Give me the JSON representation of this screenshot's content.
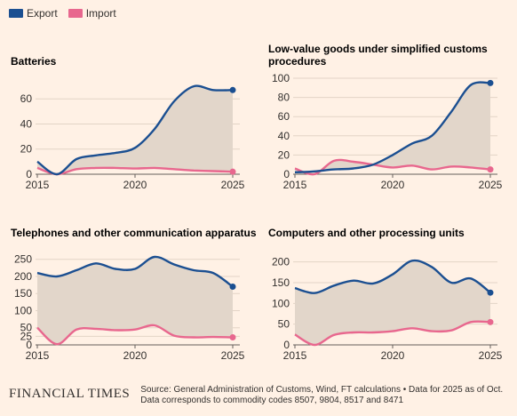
{
  "legend": {
    "export_label": "Export",
    "import_label": "Import",
    "export_color": "#1b4f91",
    "import_color": "#e8678e"
  },
  "footer": {
    "logo": "FINANCIAL TIMES",
    "source": "Source: General Administration of Customs, Wind, FT calculations • Data for 2025 as of Oct. Data corresponds to commodity codes 8507, 9804, 8517 and 8471"
  },
  "chart_data": [
    {
      "type": "line",
      "title": "Batteries",
      "x": [
        2015,
        2016,
        2017,
        2018,
        2019,
        2020,
        2021,
        2022,
        2023,
        2024,
        2025
      ],
      "x_ticks": [
        2015,
        2020,
        2025
      ],
      "y_ticks": [
        0,
        20,
        40,
        60
      ],
      "ylim": [
        0,
        75
      ],
      "fill_between": true,
      "series": [
        {
          "name": "Export",
          "values": [
            10,
            0,
            12,
            15,
            17,
            21,
            36,
            58,
            70,
            67,
            67
          ]
        },
        {
          "name": "Import",
          "values": [
            5,
            0,
            4,
            5,
            5,
            4.5,
            5,
            4,
            3,
            2.5,
            2
          ]
        }
      ]
    },
    {
      "type": "line",
      "title": "Low-value goods under simplified customs procedures",
      "x": [
        2015,
        2016,
        2017,
        2018,
        2019,
        2020,
        2021,
        2022,
        2023,
        2024,
        2025
      ],
      "x_ticks": [
        2015,
        2020,
        2025
      ],
      "y_ticks": [
        0,
        20,
        40,
        60,
        80,
        100
      ],
      "ylim": [
        0,
        100
      ],
      "fill_between": true,
      "series": [
        {
          "name": "Export",
          "values": [
            2,
            3,
            5,
            6,
            10,
            20,
            32,
            40,
            65,
            93,
            95
          ]
        },
        {
          "name": "Import",
          "values": [
            6,
            0,
            14,
            13,
            10,
            7,
            9,
            5,
            8,
            7,
            5
          ]
        }
      ]
    },
    {
      "type": "line",
      "title": "Telephones and other communication apparatus",
      "x": [
        2015,
        2016,
        2017,
        2018,
        2019,
        2020,
        2021,
        2022,
        2023,
        2024,
        2025
      ],
      "x_ticks": [
        2015,
        2020,
        2025
      ],
      "y_ticks": [
        0,
        25,
        50,
        100,
        150,
        200,
        250
      ],
      "ylim": [
        0,
        270
      ],
      "fill_between": true,
      "series": [
        {
          "name": "Export",
          "values": [
            210,
            200,
            218,
            238,
            222,
            222,
            257,
            235,
            218,
            210,
            170
          ]
        },
        {
          "name": "Import",
          "values": [
            50,
            2,
            45,
            47,
            43,
            45,
            57,
            27,
            22,
            23,
            22
          ]
        }
      ]
    },
    {
      "type": "line",
      "title": "Computers and other processing units",
      "x": [
        2015,
        2016,
        2017,
        2018,
        2019,
        2020,
        2021,
        2022,
        2023,
        2024,
        2025
      ],
      "x_ticks": [
        2015,
        2020,
        2025
      ],
      "y_ticks": [
        0,
        50,
        100,
        150,
        200
      ],
      "ylim": [
        0,
        210
      ],
      "fill_between": true,
      "series": [
        {
          "name": "Export",
          "values": [
            137,
            125,
            143,
            155,
            148,
            170,
            203,
            188,
            150,
            160,
            126
          ]
        },
        {
          "name": "Import",
          "values": [
            25,
            0,
            24,
            30,
            30,
            33,
            40,
            33,
            35,
            55,
            55
          ]
        }
      ]
    }
  ]
}
